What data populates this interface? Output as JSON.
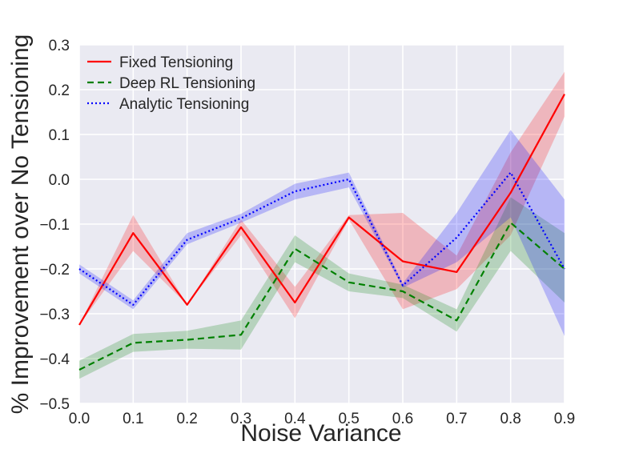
{
  "chart_data": {
    "type": "line",
    "title": "",
    "xlabel": "Noise Variance",
    "ylabel": "% Improvement over No Tensioning",
    "xlim": [
      0.0,
      0.9
    ],
    "ylim": [
      -0.5,
      0.3
    ],
    "x": [
      0.0,
      0.1,
      0.2,
      0.3,
      0.4,
      0.5,
      0.6,
      0.7,
      0.8,
      0.9
    ],
    "x_ticks": [
      "0.0",
      "0.1",
      "0.2",
      "0.3",
      "0.4",
      "0.5",
      "0.6",
      "0.7",
      "0.8",
      "0.9"
    ],
    "y_ticks": [
      "−0.5",
      "−0.4",
      "−0.3",
      "−0.2",
      "−0.1",
      "0.0",
      "0.1",
      "0.2",
      "0.3"
    ],
    "y_tick_values": [
      -0.5,
      -0.4,
      -0.3,
      -0.2,
      -0.1,
      0.0,
      0.1,
      0.2,
      0.3
    ],
    "grid": true,
    "legend_position": "top-left",
    "background": "#eaeaf2",
    "series": [
      {
        "name": "Fixed Tensioning",
        "color": "#ff0000",
        "linestyle": "solid",
        "values": [
          -0.325,
          -0.12,
          -0.28,
          -0.107,
          -0.275,
          -0.085,
          -0.183,
          -0.207,
          -0.03,
          0.19
        ],
        "lower": [
          -0.325,
          -0.16,
          -0.28,
          -0.125,
          -0.31,
          -0.09,
          -0.29,
          -0.245,
          -0.125,
          0.14
        ],
        "upper": [
          -0.325,
          -0.08,
          -0.28,
          -0.09,
          -0.24,
          -0.08,
          -0.075,
          -0.17,
          0.06,
          0.24
        ]
      },
      {
        "name": "Deep RL Tensioning",
        "color": "#008000",
        "linestyle": "dashed",
        "values": [
          -0.425,
          -0.365,
          -0.358,
          -0.347,
          -0.155,
          -0.23,
          -0.25,
          -0.315,
          -0.097,
          -0.2
        ],
        "lower": [
          -0.445,
          -0.385,
          -0.378,
          -0.38,
          -0.185,
          -0.25,
          -0.265,
          -0.34,
          -0.16,
          -0.275
        ],
        "upper": [
          -0.405,
          -0.345,
          -0.338,
          -0.315,
          -0.125,
          -0.21,
          -0.235,
          -0.29,
          -0.04,
          -0.12
        ]
      },
      {
        "name": "Analytic Tensioning",
        "color": "#0000ff",
        "linestyle": "dotted",
        "values": [
          -0.2,
          -0.28,
          -0.135,
          -0.087,
          -0.027,
          0.0,
          -0.237,
          -0.13,
          0.015,
          -0.2
        ],
        "lower": [
          -0.21,
          -0.29,
          -0.145,
          -0.097,
          -0.045,
          -0.018,
          -0.242,
          -0.185,
          -0.085,
          -0.35
        ],
        "upper": [
          -0.19,
          -0.27,
          -0.12,
          -0.077,
          -0.01,
          0.015,
          -0.232,
          -0.075,
          0.11,
          -0.045
        ]
      }
    ]
  }
}
